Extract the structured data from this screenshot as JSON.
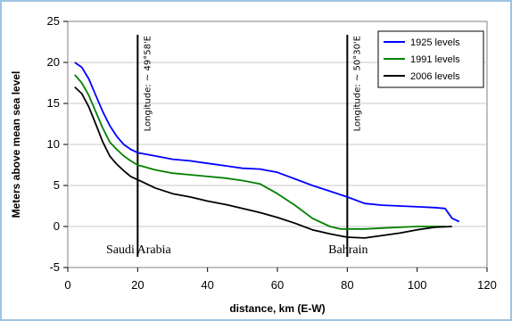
{
  "chart_data": {
    "type": "line",
    "xlabel": "distance, km (E-W)",
    "ylabel": "Meters above mean sea level",
    "xlim": [
      0,
      120
    ],
    "ylim": [
      -5,
      25
    ],
    "x_ticks": [
      0,
      20,
      40,
      60,
      80,
      100,
      120
    ],
    "y_ticks": [
      -5,
      0,
      5,
      10,
      15,
      20,
      25
    ],
    "legend_position": "top-right",
    "series": [
      {
        "name": "1925 levels",
        "color": "#0000ff",
        "x": [
          2,
          4,
          6,
          8,
          10,
          12,
          14,
          16,
          18,
          20,
          25,
          30,
          35,
          40,
          45,
          50,
          55,
          60,
          65,
          70,
          75,
          80,
          85,
          90,
          95,
          100,
          105,
          108,
          110,
          112
        ],
        "y": [
          20,
          19.4,
          18,
          16,
          14,
          12.3,
          11,
          10,
          9.4,
          9,
          8.6,
          8.2,
          8,
          7.7,
          7.4,
          7.1,
          7,
          6.6,
          5.8,
          5,
          4.3,
          3.6,
          2.8,
          2.6,
          2.5,
          2.4,
          2.3,
          2.2,
          1,
          0.6
        ]
      },
      {
        "name": "1991 levels",
        "color": "#008000",
        "x": [
          2,
          4,
          6,
          8,
          10,
          12,
          14,
          16,
          18,
          20,
          25,
          30,
          35,
          40,
          45,
          50,
          55,
          60,
          65,
          70,
          75,
          78,
          80,
          85,
          90,
          95,
          100,
          105,
          108
        ],
        "y": [
          18.5,
          17.5,
          16,
          14,
          12,
          10.3,
          9.4,
          8.6,
          8,
          7.5,
          6.9,
          6.5,
          6.3,
          6.1,
          5.9,
          5.6,
          5.2,
          4,
          2.6,
          1,
          0,
          -0.3,
          -0.3,
          -0.3,
          -0.2,
          -0.1,
          0,
          0,
          0
        ]
      },
      {
        "name": "2006 levels",
        "color": "#000000",
        "x": [
          2,
          4,
          6,
          8,
          10,
          12,
          14,
          16,
          18,
          20,
          22,
          25,
          30,
          35,
          40,
          45,
          50,
          55,
          60,
          65,
          70,
          75,
          80,
          85,
          90,
          95,
          100,
          105,
          110
        ],
        "y": [
          17,
          16.2,
          14.6,
          12.5,
          10.3,
          8.6,
          7.6,
          6.8,
          6.1,
          5.7,
          5.3,
          4.7,
          4,
          3.6,
          3.1,
          2.7,
          2.2,
          1.7,
          1.1,
          0.4,
          -0.4,
          -0.9,
          -1.3,
          -1.4,
          -1.1,
          -0.8,
          -0.4,
          -0.1,
          0
        ]
      }
    ],
    "vertical_lines": [
      {
        "x": 20,
        "label": "Longitude: ~ 49°58'E"
      },
      {
        "x": 80,
        "label": "Longitude: ~ 50°30'E"
      }
    ],
    "region_labels": [
      {
        "x": 20,
        "text": "Saudi Arabia"
      },
      {
        "x": 80,
        "text": "Bahrain"
      }
    ]
  }
}
